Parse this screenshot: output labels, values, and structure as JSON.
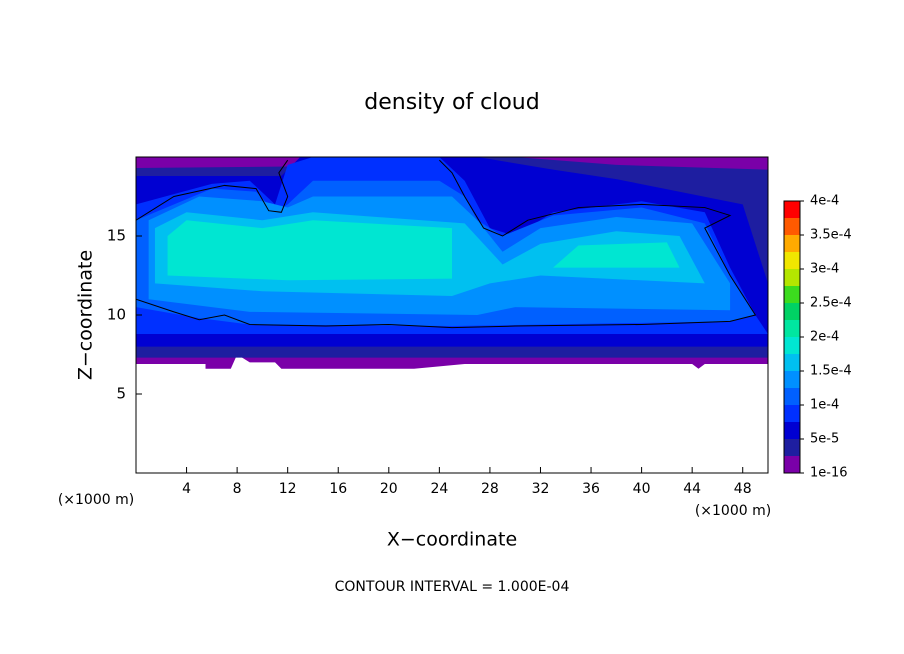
{
  "chart_data": {
    "type": "filled_contour",
    "title": "density of cloud",
    "x_label": "X−coordinate",
    "y_label": "Z−coordinate",
    "x_unit": "(×1000 m)",
    "y_unit": "(×1000 m)",
    "annotation": "CONTOUR INTERVAL = 1.000E-04",
    "xlim": [
      0,
      50
    ],
    "ylim": [
      0,
      20
    ],
    "xticks": [
      4,
      8,
      12,
      16,
      20,
      24,
      28,
      32,
      36,
      40,
      44,
      48
    ],
    "yticks": [
      5,
      10,
      15
    ],
    "colorbar": {
      "lim": [
        1e-16,
        0.0004
      ],
      "colors": [
        "#7a00a8",
        "#1e1ea0",
        "#0000d2",
        "#0030ff",
        "#0060ff",
        "#0090ff",
        "#00c0f0",
        "#00e6d2",
        "#00e6a0",
        "#00d264",
        "#3cdc1e",
        "#b4e600",
        "#f0e600",
        "#ffaa00",
        "#ff5a00",
        "#ff0000"
      ],
      "ticks": [
        {
          "value": 1e-16,
          "label": "1e-16"
        },
        {
          "value": 5e-05,
          "label": "5e-5"
        },
        {
          "value": 0.0001,
          "label": "1e-4"
        },
        {
          "value": 0.00015,
          "label": "1.5e-4"
        },
        {
          "value": 0.0002,
          "label": "2e-4"
        },
        {
          "value": 0.00025,
          "label": "2.5e-4"
        },
        {
          "value": 0.0003,
          "label": "3e-4"
        },
        {
          "value": 0.00035,
          "label": "3.5e-4"
        },
        {
          "value": 0.0004,
          "label": "4e-4"
        }
      ]
    },
    "regions": [
      {
        "value": 1e-16,
        "points": [
          [
            0,
            6.9
          ],
          [
            5.5,
            6.9
          ],
          [
            5.5,
            6.6
          ],
          [
            7.5,
            6.6
          ],
          [
            8,
            7.5
          ],
          [
            9,
            7
          ],
          [
            11,
            7
          ],
          [
            11.5,
            6.6
          ],
          [
            22,
            6.6
          ],
          [
            26,
            6.9
          ],
          [
            44,
            6.9
          ],
          [
            44.5,
            6.6
          ],
          [
            45,
            6.9
          ],
          [
            50,
            6.9
          ],
          [
            50,
            20
          ],
          [
            0,
            20
          ]
        ]
      },
      {
        "value": 2.5e-05,
        "points": [
          [
            0,
            7.3
          ],
          [
            50,
            7.3
          ],
          [
            50,
            19.2
          ],
          [
            38,
            19.5
          ],
          [
            30,
            20
          ],
          [
            14,
            20
          ],
          [
            12,
            19.4
          ],
          [
            0,
            19.3
          ]
        ]
      },
      {
        "value": 5e-05,
        "points": [
          [
            0,
            8
          ],
          [
            50,
            8
          ],
          [
            50,
            12
          ],
          [
            48,
            17
          ],
          [
            38,
            18.6
          ],
          [
            33,
            19.2
          ],
          [
            27,
            20
          ],
          [
            22,
            20
          ],
          [
            13,
            20
          ],
          [
            11.5,
            18.8
          ],
          [
            0,
            18.8
          ]
        ]
      },
      {
        "value": 7.5e-05,
        "points": [
          [
            0,
            8.8
          ],
          [
            50,
            8.8
          ],
          [
            49,
            10
          ],
          [
            47,
            13
          ],
          [
            45,
            16.5
          ],
          [
            40,
            17.2
          ],
          [
            33,
            16.5
          ],
          [
            30,
            15
          ],
          [
            28,
            15.5
          ],
          [
            26,
            18.5
          ],
          [
            24,
            20
          ],
          [
            14,
            20
          ],
          [
            12,
            19.5
          ],
          [
            11,
            17
          ],
          [
            9,
            18.5
          ],
          [
            6,
            18.3
          ],
          [
            0,
            17
          ]
        ]
      },
      {
        "value": 0.0001,
        "points": [
          [
            0,
            10.5
          ],
          [
            5,
            9.8
          ],
          [
            9,
            9.4
          ],
          [
            25,
            9.3
          ],
          [
            47,
            9.6
          ],
          [
            49,
            10
          ],
          [
            47,
            12.5
          ],
          [
            45,
            15.8
          ],
          [
            40,
            16.8
          ],
          [
            33,
            16.3
          ],
          [
            29,
            15
          ],
          [
            27,
            16
          ],
          [
            26,
            17.5
          ],
          [
            24,
            18.5
          ],
          [
            14,
            18.5
          ],
          [
            12,
            17
          ],
          [
            11,
            16.5
          ],
          [
            9.5,
            17.8
          ],
          [
            6,
            18
          ],
          [
            0,
            16
          ]
        ]
      },
      {
        "value": 0.000125,
        "points": [
          [
            1,
            11
          ],
          [
            9,
            10.2
          ],
          [
            27,
            10
          ],
          [
            30,
            10.5
          ],
          [
            47,
            10.3
          ],
          [
            47,
            12
          ],
          [
            44,
            15.8
          ],
          [
            38,
            16.2
          ],
          [
            32,
            15.5
          ],
          [
            29,
            14
          ],
          [
            27,
            16
          ],
          [
            25,
            17.5
          ],
          [
            14,
            17.5
          ],
          [
            12,
            16.8
          ],
          [
            10,
            17.2
          ],
          [
            5,
            17.5
          ],
          [
            1,
            16
          ]
        ]
      },
      {
        "value": 0.00015,
        "points": [
          [
            1.5,
            12
          ],
          [
            10,
            11.5
          ],
          [
            25,
            11.2
          ],
          [
            28,
            12
          ],
          [
            32,
            12.5
          ],
          [
            45,
            12
          ],
          [
            43,
            15
          ],
          [
            38,
            15.3
          ],
          [
            32,
            14.5
          ],
          [
            29,
            13.2
          ],
          [
            26,
            15.8
          ],
          [
            14,
            16.5
          ],
          [
            10,
            16
          ],
          [
            4,
            16.5
          ],
          [
            1.5,
            15.5
          ]
        ]
      },
      {
        "value": 0.000175,
        "points": [
          [
            2.5,
            12.5
          ],
          [
            12,
            12.2
          ],
          [
            25,
            12.3
          ],
          [
            25,
            15.5
          ],
          [
            14,
            16
          ],
          [
            10,
            15.5
          ],
          [
            4,
            16
          ],
          [
            2.5,
            15
          ]
        ]
      },
      {
        "value": 0.000175,
        "points": [
          [
            33,
            13
          ],
          [
            43,
            13
          ],
          [
            42,
            14.6
          ],
          [
            35,
            14.4
          ]
        ]
      }
    ],
    "contour_lines": [
      {
        "value": 0.0001,
        "color": "#000000",
        "points": [
          [
            0,
            11
          ],
          [
            3,
            10.2
          ],
          [
            5,
            9.7
          ],
          [
            7,
            10
          ],
          [
            9,
            9.4
          ],
          [
            15,
            9.3
          ],
          [
            20,
            9.4
          ],
          [
            25,
            9.2
          ],
          [
            30,
            9.3
          ],
          [
            40,
            9.4
          ],
          [
            47,
            9.6
          ],
          [
            49,
            10
          ],
          [
            47,
            12.5
          ],
          [
            45,
            15.5
          ],
          [
            47,
            16.3
          ],
          [
            45,
            16.8
          ],
          [
            40,
            17
          ],
          [
            35,
            16.8
          ],
          [
            31,
            16
          ],
          [
            29,
            15
          ],
          [
            27.5,
            15.5
          ],
          [
            26,
            17.5
          ],
          [
            25,
            19
          ],
          [
            24,
            19.8
          ]
        ]
      },
      {
        "value": 0.0001,
        "color": "#000000",
        "points": [
          [
            0,
            16
          ],
          [
            3,
            17.5
          ],
          [
            7,
            18.2
          ],
          [
            9.5,
            18
          ],
          [
            10.5,
            16.6
          ],
          [
            11.5,
            16.5
          ],
          [
            12,
            17.5
          ],
          [
            11.3,
            19
          ],
          [
            12,
            19.8
          ]
        ]
      }
    ]
  }
}
